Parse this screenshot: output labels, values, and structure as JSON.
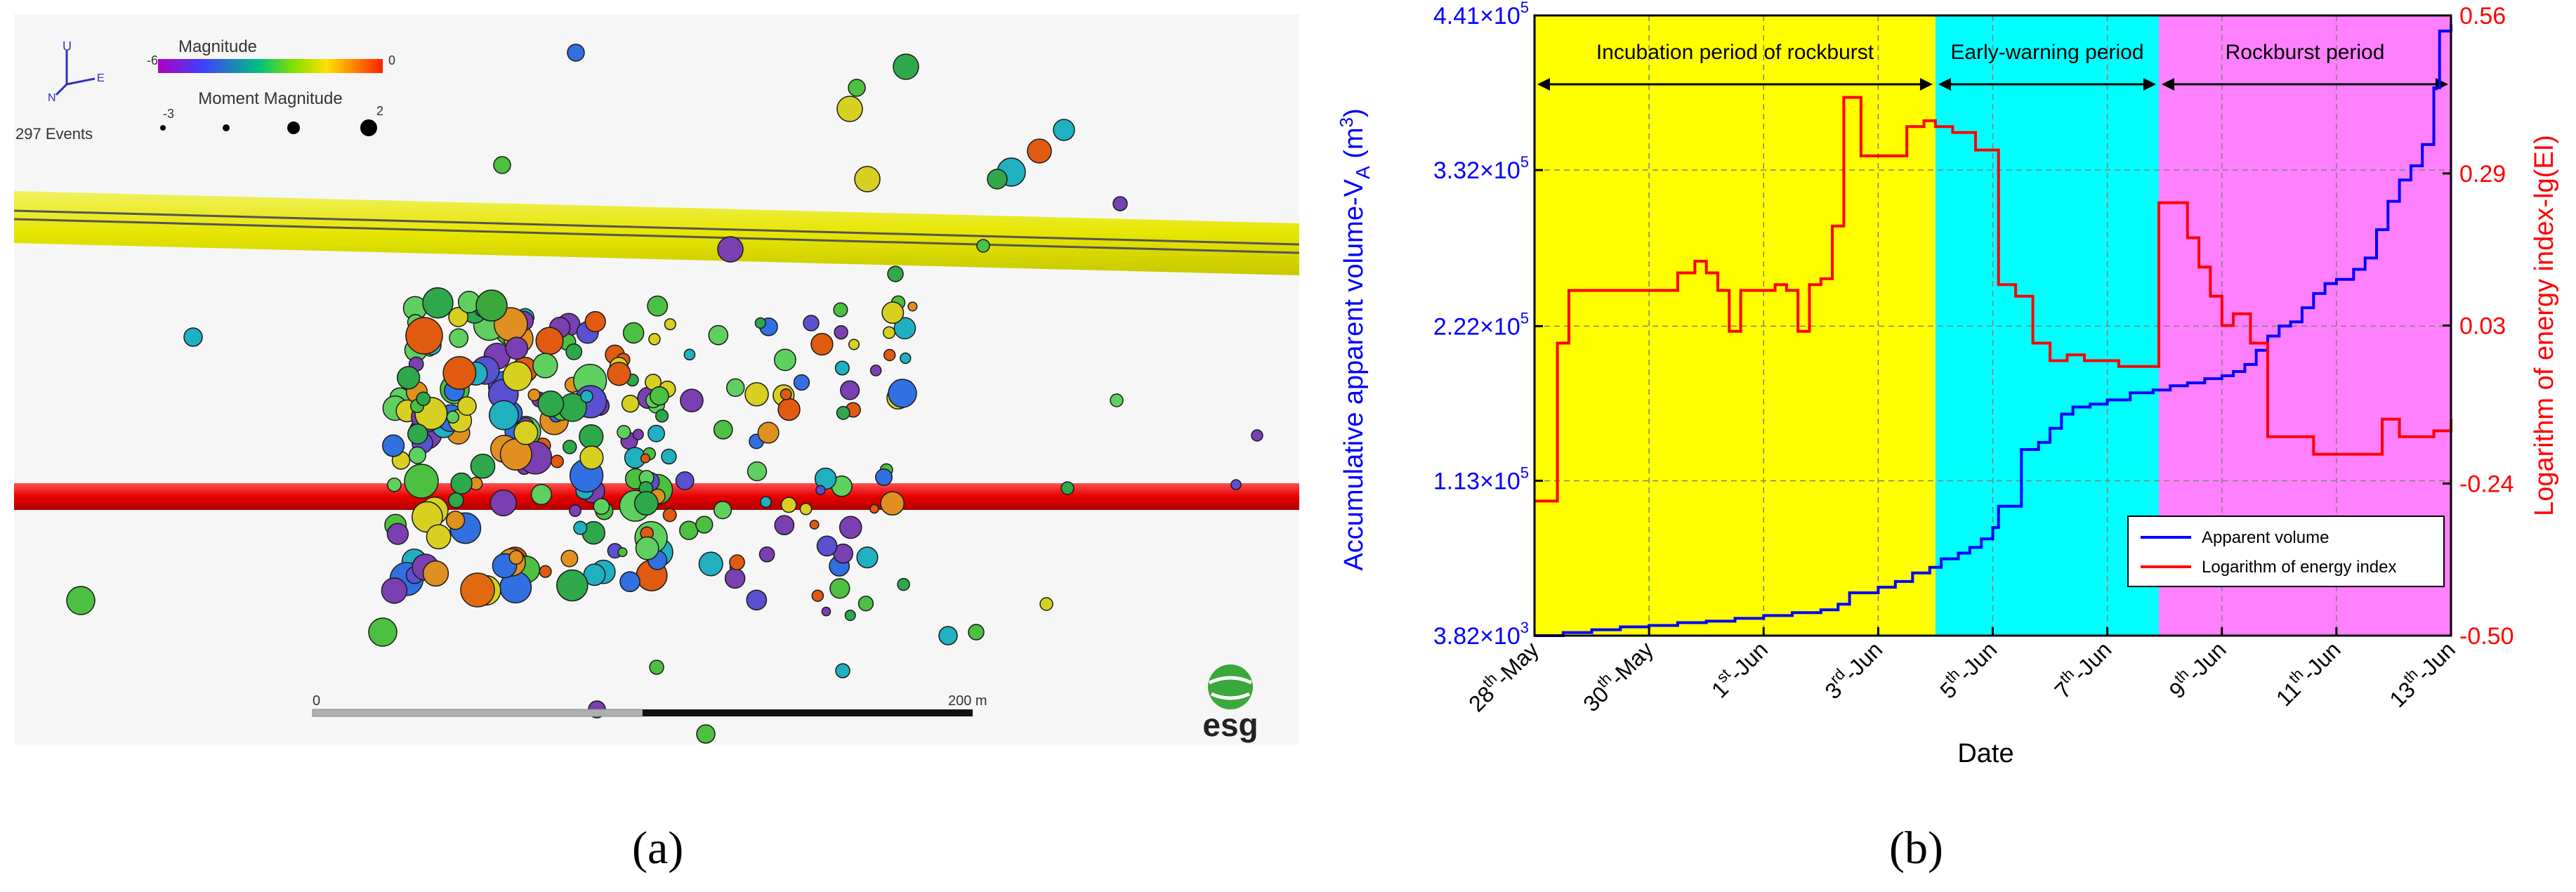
{
  "panel_a": {
    "legend": {
      "magnitude_title": "Magnitude",
      "mag_min": "-6",
      "mag_max": "0",
      "moment_title": "Moment Magnitude",
      "moment_min": "-3",
      "moment_max": "2",
      "event_count": "297 Events",
      "axis_up": "U",
      "axis_north": "N",
      "axis_east": "E"
    },
    "scale_bar": {
      "start": "0",
      "end": "200 m"
    },
    "logo_text": "esg",
    "caption": "(a)"
  },
  "chart_data": {
    "type": "line",
    "x_label": "Date",
    "x_ticks": [
      "28th-May",
      "30th-May",
      "1st-Jun",
      "3rd-Jun",
      "5th-Jun",
      "7th-Jun",
      "9th-Jun",
      "11th-Jun",
      "13th-Jun"
    ],
    "x_tick_days": [
      0,
      2,
      4,
      6,
      8,
      10,
      12,
      14,
      16
    ],
    "xlim": [
      0,
      16
    ],
    "y_left": {
      "label": "Accumulative apparent volume-V",
      "label_sub": "A",
      "label_unit_open": " (m",
      "label_unit_sup": "3",
      "label_unit_close": ")",
      "ticks": [
        "4.41",
        "3.32",
        "2.22",
        "1.13",
        "3.82"
      ],
      "tick_exps": [
        "5",
        "5",
        "5",
        "5",
        "3"
      ],
      "tick_values": [
        441000,
        332000,
        222000,
        113000,
        3820
      ],
      "ylim": [
        3820,
        441000
      ],
      "color": "#0000ff"
    },
    "y_right": {
      "label": "Logarithm of energy index-lg(EI)",
      "ticks": [
        "0.56",
        "0.29",
        "0.03",
        "-0.24",
        "-0.50"
      ],
      "tick_values": [
        0.56,
        0.29,
        0.03,
        -0.24,
        -0.5
      ],
      "ylim": [
        -0.5,
        0.56
      ],
      "color": "#ff0000"
    },
    "periods": [
      {
        "name": "Incubation period of rockburst",
        "start": 0,
        "end": 7,
        "color": "#ffff00"
      },
      {
        "name": "Early-warning period",
        "start": 7,
        "end": 10.9,
        "color": "#00ffff"
      },
      {
        "name": "Rockburst period",
        "start": 10.9,
        "end": 16,
        "color": "#ff80ff"
      }
    ],
    "series": [
      {
        "name": "Apparent volume",
        "color": "#0000ff",
        "axis": "left",
        "x": [
          0,
          0.5,
          1,
          1.5,
          2,
          2.5,
          3,
          3.5,
          4,
          4.5,
          5,
          5.3,
          5.5,
          6,
          6.3,
          6.6,
          6.9,
          7.1,
          7.4,
          7.6,
          7.8,
          8.0,
          8.1,
          8.5,
          8.8,
          9.0,
          9.2,
          9.4,
          9.7,
          10,
          10.4,
          10.8,
          11.1,
          11.4,
          11.7,
          12.0,
          12.2,
          12.4,
          12.6,
          12.8,
          13.0,
          13.2,
          13.4,
          13.6,
          13.8,
          14.0,
          14.3,
          14.5,
          14.7,
          14.9,
          15.1,
          15.3,
          15.5,
          15.7,
          15.8,
          16
        ],
        "values": [
          3820,
          6000,
          8000,
          10000,
          11000,
          13000,
          14000,
          16000,
          18000,
          20000,
          22000,
          26000,
          34000,
          38000,
          42000,
          48000,
          52000,
          58000,
          62000,
          66000,
          72000,
          80000,
          95000,
          135000,
          140000,
          150000,
          160000,
          165000,
          167000,
          170000,
          175000,
          177000,
          180000,
          182000,
          185000,
          187000,
          190000,
          195000,
          205000,
          215000,
          222000,
          225000,
          235000,
          245000,
          252000,
          255000,
          262000,
          270000,
          290000,
          310000,
          325000,
          335000,
          350000,
          390000,
          430000,
          435000
        ]
      },
      {
        "name": "Logarithm of energy index",
        "color": "#ff0000",
        "axis": "right",
        "x": [
          0,
          0.3,
          0.4,
          0.6,
          1.0,
          1.5,
          2.0,
          2.5,
          2.8,
          3.0,
          3.2,
          3.4,
          3.6,
          4.0,
          4.2,
          4.4,
          4.6,
          4.8,
          5.0,
          5.2,
          5.4,
          5.7,
          5.9,
          6.2,
          6.5,
          6.8,
          7.0,
          7.3,
          7.5,
          7.7,
          7.9,
          8.1,
          8.4,
          8.7,
          9.0,
          9.3,
          9.6,
          9.9,
          10.2,
          10.5,
          10.8,
          10.9,
          11.0,
          11.2,
          11.4,
          11.6,
          11.8,
          12.0,
          12.2,
          12.5,
          12.8,
          13.2,
          13.6,
          14.0,
          14.3,
          14.5,
          14.8,
          15.1,
          15.4,
          15.7,
          16
        ],
        "values": [
          -0.27,
          -0.27,
          0.0,
          0.09,
          0.09,
          0.09,
          0.09,
          0.12,
          0.14,
          0.12,
          0.09,
          0.02,
          0.09,
          0.09,
          0.1,
          0.09,
          0.02,
          0.1,
          0.11,
          0.2,
          0.42,
          0.32,
          0.32,
          0.32,
          0.37,
          0.38,
          0.37,
          0.36,
          0.36,
          0.33,
          0.33,
          0.1,
          0.08,
          0.0,
          -0.03,
          -0.02,
          -0.03,
          -0.03,
          -0.04,
          -0.04,
          -0.04,
          0.24,
          0.24,
          0.24,
          0.18,
          0.13,
          0.08,
          0.03,
          0.05,
          0.0,
          -0.16,
          -0.16,
          -0.19,
          -0.19,
          -0.19,
          -0.19,
          -0.13,
          -0.16,
          -0.16,
          -0.15,
          -0.13
        ]
      }
    ],
    "legend": [
      "Apparent volume",
      "Logarithm of energy index"
    ],
    "legend_position": "bottom-right",
    "caption": "(b)"
  }
}
